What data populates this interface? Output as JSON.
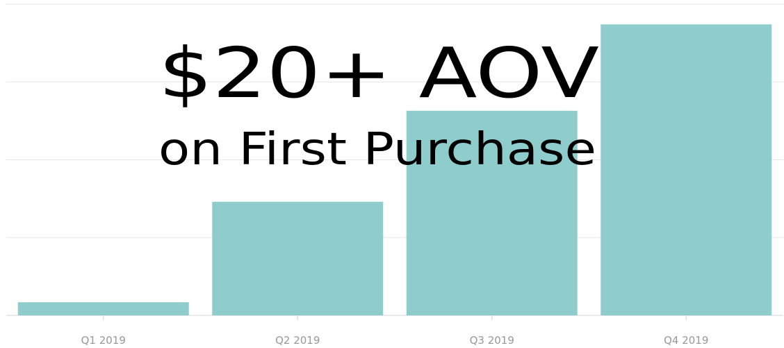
{
  "chart_data": {
    "type": "bar",
    "title": "$20+ AOV",
    "subtitle": "on First Purchase",
    "categories": [
      "Q1 2019",
      "Q2 2019",
      "Q3 2019",
      "Q4 2019"
    ],
    "values": [
      0.17,
      1.46,
      2.63,
      3.74
    ],
    "color": "#8fcdcd",
    "ylim": [
      0,
      4
    ],
    "yticks": [
      0,
      1,
      2,
      3,
      4
    ],
    "grid": true
  }
}
